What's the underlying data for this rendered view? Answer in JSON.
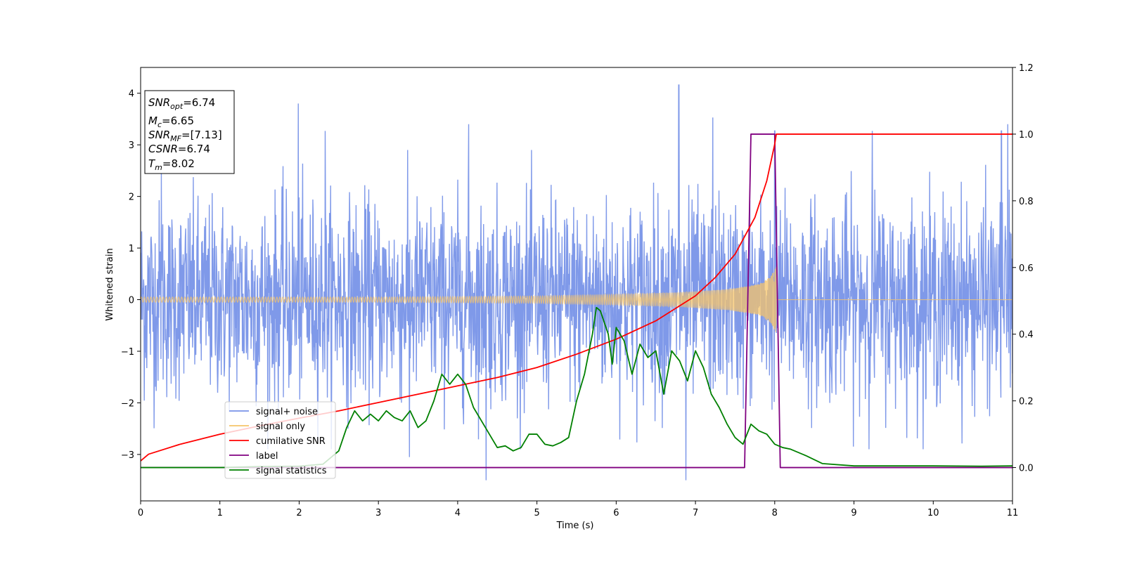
{
  "chart_data": {
    "type": "line",
    "xlabel": "Time (s)",
    "ylabel": "Whitened strain",
    "xlim": [
      0,
      11
    ],
    "ylim_left": [
      -3.9,
      4.5
    ],
    "ylim_right": [
      -0.1,
      1.2
    ],
    "x_ticks": [
      0,
      1,
      2,
      3,
      4,
      5,
      6,
      7,
      8,
      9,
      10,
      11
    ],
    "y_ticks_left": [
      "−3",
      "−2",
      "−1",
      "0",
      "1",
      "2",
      "3",
      "4"
    ],
    "y_ticks_left_values": [
      -3,
      -2,
      -1,
      0,
      1,
      2,
      3,
      4
    ],
    "y_ticks_right": [
      "0.0",
      "0.2",
      "0.4",
      "0.6",
      "0.8",
      "1.0",
      "1.2"
    ],
    "y_ticks_right_values": [
      0.0,
      0.2,
      0.4,
      0.6,
      0.8,
      1.0,
      1.2
    ],
    "grid": false,
    "legend_position": "lower-left",
    "info_box": {
      "snr_opt_label": "SNR",
      "snr_opt_sub": "opt",
      "snr_opt_value": "=6.74",
      "mc_label": "M",
      "mc_sub": "c",
      "mc_value": "=6.65",
      "snr_mf_label": "SNR",
      "snr_mf_sub": "MF",
      "snr_mf_value": "=[7.13]",
      "csnr_label": "CSNR",
      "csnr_value": "=6.74",
      "tm_label": "T",
      "tm_sub": "m",
      "tm_value": "=8.02"
    },
    "series": [
      {
        "name": "signal+ noise",
        "axis": "left",
        "color": "#7893e8",
        "description_range": [
          -3.5,
          4.2
        ],
        "spike_points": [
          [
            0.26,
            2.46
          ],
          [
            1.99,
            3.8
          ],
          [
            2.33,
            3.27
          ],
          [
            3.39,
            -3.05
          ],
          [
            4.14,
            3.4
          ],
          [
            4.36,
            -3.5
          ],
          [
            6.79,
            4.16
          ],
          [
            6.88,
            -3.5
          ],
          [
            7.22,
            3.53
          ],
          [
            8.0,
            3.27
          ],
          [
            9.23,
            3.27
          ],
          [
            10.86,
            3.27
          ],
          [
            10.94,
            3.4
          ]
        ]
      },
      {
        "name": "signal only",
        "axis": "left",
        "color": "#f5c469",
        "envelope": [
          [
            0,
            0.05
          ],
          [
            3,
            0.05
          ],
          [
            5,
            0.07
          ],
          [
            6,
            0.1
          ],
          [
            6.8,
            0.14
          ],
          [
            7.4,
            0.2
          ],
          [
            7.8,
            0.3
          ],
          [
            7.95,
            0.45
          ],
          [
            8.02,
            0.65
          ]
        ],
        "end_time": 8.02
      },
      {
        "name": "cumilative SNR",
        "axis": "right",
        "color": "#ff0000",
        "points": [
          [
            0,
            0.02
          ],
          [
            0.1,
            0.04
          ],
          [
            0.5,
            0.07
          ],
          [
            1,
            0.1
          ],
          [
            1.5,
            0.125
          ],
          [
            2,
            0.148
          ],
          [
            2.5,
            0.17
          ],
          [
            3,
            0.195
          ],
          [
            3.5,
            0.22
          ],
          [
            4,
            0.245
          ],
          [
            4.5,
            0.27
          ],
          [
            5,
            0.3
          ],
          [
            5.5,
            0.34
          ],
          [
            6,
            0.385
          ],
          [
            6.5,
            0.44
          ],
          [
            7,
            0.515
          ],
          [
            7.25,
            0.57
          ],
          [
            7.5,
            0.64
          ],
          [
            7.75,
            0.75
          ],
          [
            7.9,
            0.86
          ],
          [
            8.0,
            0.97
          ],
          [
            8.02,
            1.0
          ],
          [
            11,
            1.0
          ]
        ]
      },
      {
        "name": "label",
        "axis": "right",
        "color": "#800080",
        "points": [
          [
            0,
            0.0
          ],
          [
            7.62,
            0.0
          ],
          [
            7.7,
            1.0
          ],
          [
            8.0,
            1.0
          ],
          [
            8.07,
            0.0
          ],
          [
            11,
            0.0
          ]
        ]
      },
      {
        "name": "signal statistics",
        "axis": "right",
        "color": "#008000",
        "points": [
          [
            0,
            0.0
          ],
          [
            1,
            0.0
          ],
          [
            1.5,
            0.003
          ],
          [
            2.0,
            0.004
          ],
          [
            2.3,
            0.01
          ],
          [
            2.5,
            0.05
          ],
          [
            2.6,
            0.12
          ],
          [
            2.7,
            0.17
          ],
          [
            2.8,
            0.14
          ],
          [
            2.9,
            0.16
          ],
          [
            3.0,
            0.14
          ],
          [
            3.1,
            0.17
          ],
          [
            3.2,
            0.15
          ],
          [
            3.3,
            0.14
          ],
          [
            3.4,
            0.17
          ],
          [
            3.5,
            0.12
          ],
          [
            3.6,
            0.14
          ],
          [
            3.7,
            0.2
          ],
          [
            3.8,
            0.28
          ],
          [
            3.9,
            0.25
          ],
          [
            4.0,
            0.28
          ],
          [
            4.1,
            0.25
          ],
          [
            4.2,
            0.18
          ],
          [
            4.3,
            0.14
          ],
          [
            4.4,
            0.1
          ],
          [
            4.5,
            0.06
          ],
          [
            4.6,
            0.065
          ],
          [
            4.7,
            0.05
          ],
          [
            4.8,
            0.06
          ],
          [
            4.9,
            0.1
          ],
          [
            5.0,
            0.1
          ],
          [
            5.1,
            0.07
          ],
          [
            5.2,
            0.065
          ],
          [
            5.3,
            0.075
          ],
          [
            5.4,
            0.09
          ],
          [
            5.5,
            0.2
          ],
          [
            5.6,
            0.28
          ],
          [
            5.7,
            0.4
          ],
          [
            5.75,
            0.48
          ],
          [
            5.8,
            0.47
          ],
          [
            5.9,
            0.4
          ],
          [
            5.95,
            0.31
          ],
          [
            6.0,
            0.42
          ],
          [
            6.1,
            0.38
          ],
          [
            6.2,
            0.28
          ],
          [
            6.3,
            0.37
          ],
          [
            6.4,
            0.33
          ],
          [
            6.5,
            0.35
          ],
          [
            6.6,
            0.22
          ],
          [
            6.7,
            0.35
          ],
          [
            6.8,
            0.32
          ],
          [
            6.9,
            0.26
          ],
          [
            7.0,
            0.35
          ],
          [
            7.1,
            0.3
          ],
          [
            7.2,
            0.22
          ],
          [
            7.3,
            0.18
          ],
          [
            7.4,
            0.13
          ],
          [
            7.5,
            0.09
          ],
          [
            7.6,
            0.07
          ],
          [
            7.7,
            0.13
          ],
          [
            7.8,
            0.11
          ],
          [
            7.9,
            0.1
          ],
          [
            8.0,
            0.07
          ],
          [
            8.1,
            0.06
          ],
          [
            8.2,
            0.055
          ],
          [
            8.4,
            0.035
          ],
          [
            8.6,
            0.012
          ],
          [
            9.0,
            0.005
          ],
          [
            10.0,
            0.005
          ],
          [
            10.6,
            0.004
          ],
          [
            11.0,
            0.005
          ]
        ]
      }
    ]
  }
}
